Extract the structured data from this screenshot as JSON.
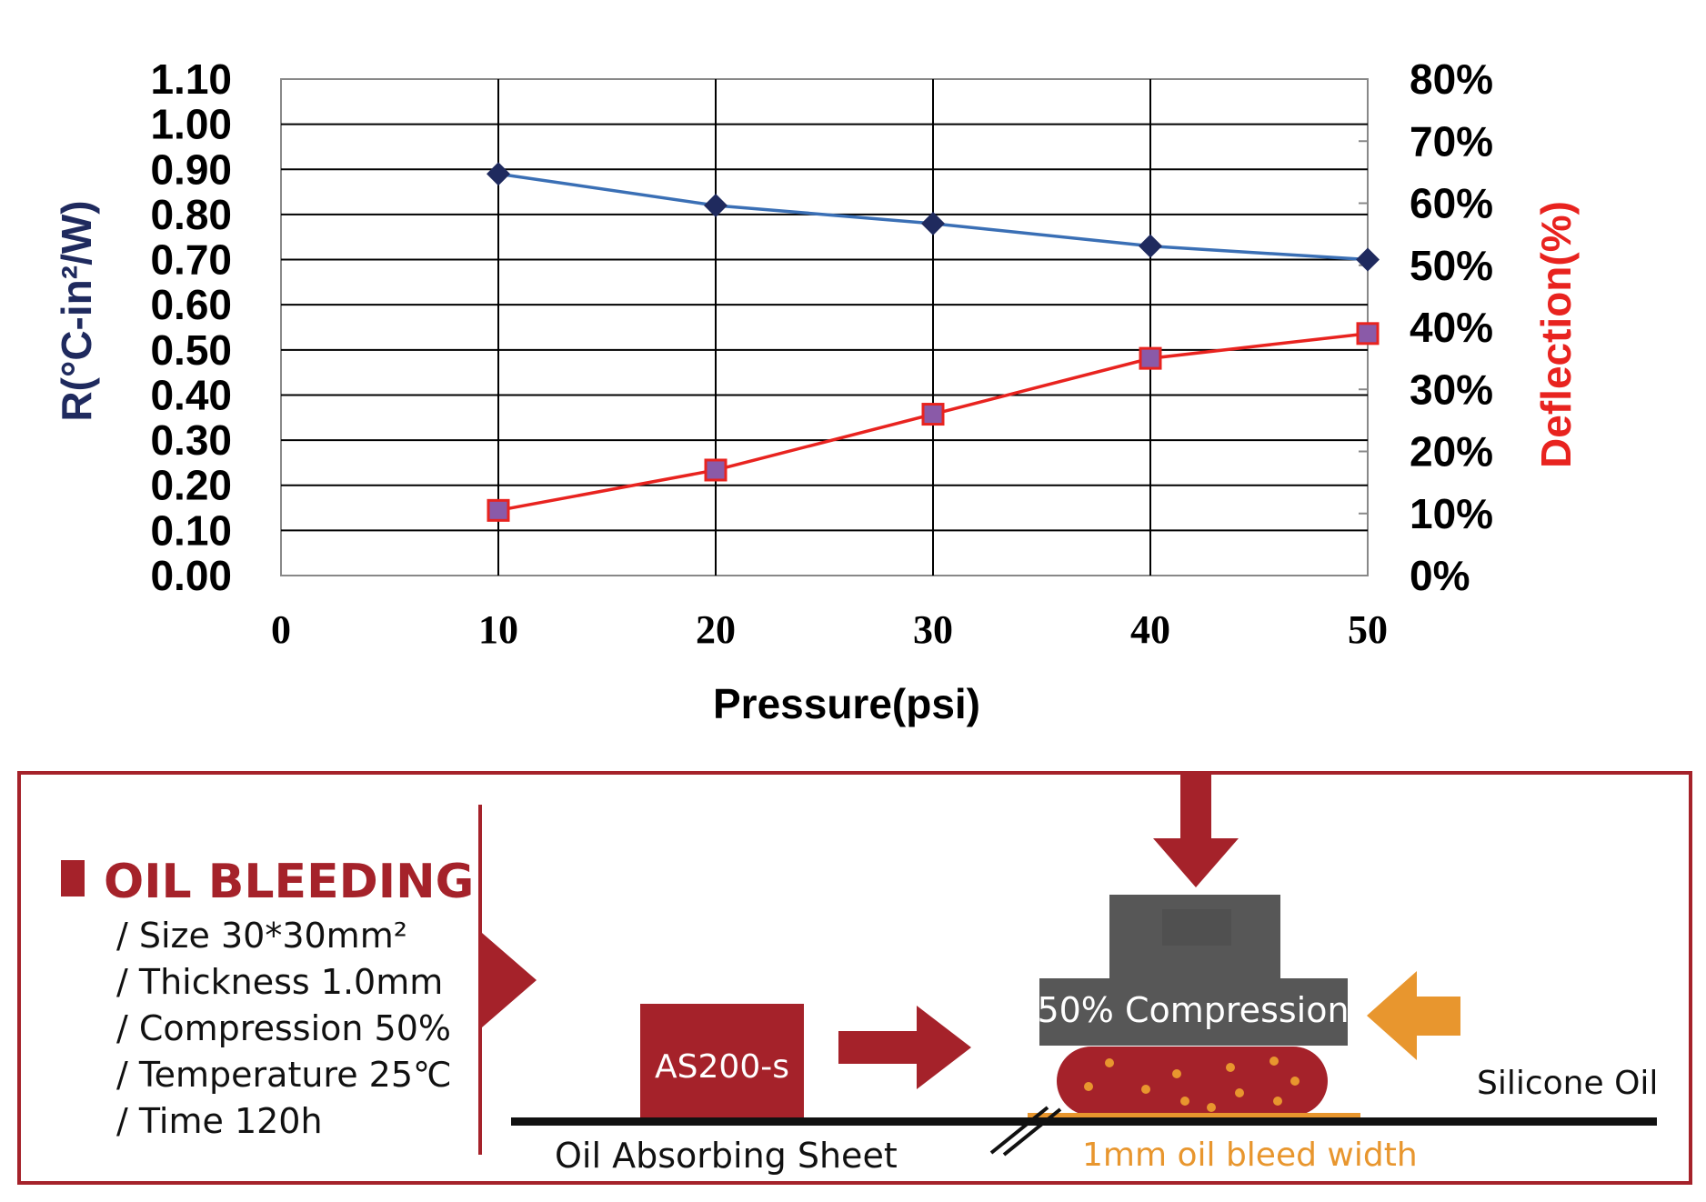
{
  "chart_data": {
    "type": "line",
    "x": [
      10,
      20,
      30,
      40,
      50
    ],
    "xlabel": "Pressure(psi)",
    "xlim": [
      0,
      50
    ],
    "x_ticks": [
      "0",
      "10",
      "20",
      "30",
      "40",
      "50"
    ],
    "ylabel_left": "R(°C-in²/W)",
    "ylim_left": [
      0,
      1.1
    ],
    "y_ticks_left": [
      "1.10",
      "1.00",
      "0.90",
      "0.80",
      "0.70",
      "0.60",
      "0.50",
      "0.40",
      "0.30",
      "0.20",
      "0.10",
      "0.00"
    ],
    "ylabel_right": "Deflection(%)",
    "ylim_right": [
      0,
      80
    ],
    "y_ticks_right": [
      "80%",
      "70%",
      "60%",
      "50%",
      "40%",
      "30%",
      "20%",
      "10%",
      "0%"
    ],
    "grid": true,
    "series": [
      {
        "axis": "left",
        "marker": "diamond",
        "color": "#3a6fb5",
        "marker_color": "#1f2a5e",
        "values": [
          0.89,
          0.82,
          0.78,
          0.73,
          0.7
        ]
      },
      {
        "axis": "right",
        "marker": "square",
        "color": "#e8231f",
        "marker_color": "#8a5aa8",
        "values": [
          10.5,
          17,
          26,
          35,
          39
        ]
      }
    ]
  },
  "panel": {
    "title": "OIL BLEEDING",
    "specs": [
      "/ Size 30*30mm²",
      "/ Thickness 1.0mm",
      "/ Compression 50%",
      "/ Temperature 25℃",
      "/ Time 120h"
    ],
    "sample_label": "AS200-s",
    "compression_label": "50% Compression",
    "silicone_label": "Silicone Oil",
    "sheet_label": "Oil Absorbing Sheet",
    "bleed_label": "1mm oil bleed width",
    "colors": {
      "brand_red": "#a5222a",
      "orange": "#e8962e",
      "dark_gray": "#575757"
    }
  }
}
